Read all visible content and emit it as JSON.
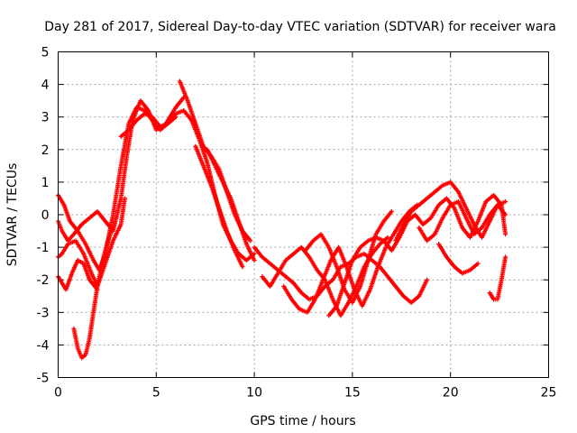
{
  "chart_data": {
    "type": "scatter",
    "title": "Day 281 of 2017, Sidereal Day-to-day VTEC variation (SDTVAR) for receiver wara",
    "xlabel": "GPS time / hours",
    "ylabel": "SDTVAR / TECUs",
    "xlim": [
      0,
      25
    ],
    "ylim": [
      -5,
      5
    ],
    "xticks": [
      "0",
      "5",
      "10",
      "15",
      "20",
      "25"
    ],
    "yticks": [
      "-5",
      "-4",
      "-3",
      "-2",
      "-1",
      "0",
      "1",
      "2",
      "3",
      "4",
      "5"
    ],
    "grid": true,
    "marker": "plus",
    "color": "#ff0000",
    "series": [
      {
        "name": "trace-1",
        "x": [
          0.0,
          0.3,
          0.6,
          1.0,
          1.4,
          1.8,
          2.1,
          2.4,
          2.8,
          3.2,
          3.6,
          4.0,
          4.4,
          4.8,
          5.2,
          5.6,
          6.0
        ],
        "y": [
          0.6,
          0.3,
          -0.2,
          -0.5,
          -0.9,
          -1.4,
          -1.7,
          -1.2,
          0.0,
          1.5,
          2.8,
          3.3,
          3.2,
          2.9,
          2.6,
          2.8,
          3.0
        ]
      },
      {
        "name": "trace-2",
        "x": [
          0.0,
          0.2,
          0.5,
          0.8,
          1.2,
          1.6,
          2.0,
          2.4,
          2.8,
          3.2,
          3.5,
          3.8,
          4.2,
          4.6,
          5.0,
          5.5,
          6.0,
          6.4
        ],
        "y": [
          -0.2,
          -0.5,
          -0.8,
          -0.6,
          -0.3,
          -0.1,
          0.1,
          -0.2,
          -0.5,
          0.5,
          1.8,
          2.9,
          3.5,
          3.2,
          2.6,
          2.8,
          3.3,
          3.6
        ]
      },
      {
        "name": "trace-3",
        "x": [
          0.0,
          0.2,
          0.5,
          0.9,
          1.3,
          1.7,
          2.0,
          2.4,
          2.8,
          3.2,
          3.4
        ],
        "y": [
          -1.3,
          -1.2,
          -0.9,
          -0.8,
          -1.2,
          -1.8,
          -2.2,
          -1.5,
          -0.8,
          -0.3,
          0.5
        ]
      },
      {
        "name": "trace-4",
        "x": [
          0.0,
          0.2,
          0.4,
          0.7,
          1.0,
          1.3,
          1.6,
          2.0
        ],
        "y": [
          -1.9,
          -2.1,
          -2.3,
          -1.8,
          -1.4,
          -1.5,
          -2.0,
          -2.3
        ]
      },
      {
        "name": "trace-5",
        "x": [
          0.8,
          1.0,
          1.2,
          1.4,
          1.6,
          1.8,
          2.0,
          2.2,
          2.4,
          2.6,
          2.8
        ],
        "y": [
          -3.5,
          -4.1,
          -4.4,
          -4.3,
          -3.8,
          -3.0,
          -2.2,
          -1.6,
          -1.1,
          -0.7,
          -0.4
        ]
      },
      {
        "name": "trace-6",
        "x": [
          3.2,
          3.6,
          4.0,
          4.4,
          4.8,
          5.2,
          5.6,
          6.0,
          6.4,
          6.8,
          7.2,
          7.6,
          8.0,
          8.4,
          8.8,
          9.2,
          9.6,
          10.0
        ],
        "y": [
          2.4,
          2.6,
          2.9,
          3.1,
          3.0,
          2.7,
          2.8,
          3.1,
          3.2,
          2.9,
          2.3,
          1.6,
          0.6,
          -0.3,
          -0.8,
          -1.2,
          -1.4,
          -1.2
        ]
      },
      {
        "name": "trace-7",
        "x": [
          6.2,
          6.6,
          7.0,
          7.4,
          7.8,
          8.2,
          8.6,
          9.0,
          9.4,
          9.8
        ],
        "y": [
          4.1,
          3.5,
          2.8,
          2.1,
          1.8,
          1.4,
          0.7,
          0.0,
          -0.5,
          -0.8
        ]
      },
      {
        "name": "trace-8",
        "x": [
          7.0,
          7.4,
          7.8,
          8.2,
          8.6,
          9.0,
          9.4
        ],
        "y": [
          2.1,
          1.5,
          0.9,
          0.2,
          -0.5,
          -1.1,
          -1.6
        ]
      },
      {
        "name": "trace-9",
        "x": [
          7.6,
          8.0,
          8.4,
          8.8,
          9.2,
          9.6,
          10.0
        ],
        "y": [
          2.0,
          1.5,
          1.0,
          0.5,
          -0.2,
          -0.9,
          -1.4
        ]
      },
      {
        "name": "trace-10",
        "x": [
          10.0,
          10.4,
          10.8,
          11.2,
          11.6,
          12.0,
          12.4,
          12.8,
          13.2,
          13.6,
          14.0,
          14.4,
          14.8,
          15.2,
          15.6,
          16.0,
          16.4,
          16.8,
          17.2,
          17.6,
          18.0,
          18.4,
          18.8
        ],
        "y": [
          -1.0,
          -1.3,
          -1.5,
          -1.7,
          -1.9,
          -2.1,
          -2.4,
          -2.6,
          -2.5,
          -2.2,
          -2.0,
          -1.6,
          -1.5,
          -1.3,
          -1.2,
          -1.4,
          -1.6,
          -1.9,
          -2.2,
          -2.5,
          -2.7,
          -2.5,
          -2.0
        ]
      },
      {
        "name": "trace-11",
        "x": [
          10.4,
          10.8,
          11.2,
          11.6,
          12.0,
          12.4,
          12.8,
          13.2,
          13.6,
          14.0,
          14.4,
          14.8,
          15.2,
          15.6,
          16.0,
          16.4,
          16.8
        ],
        "y": [
          -1.9,
          -2.2,
          -1.8,
          -1.4,
          -1.2,
          -1.0,
          -1.3,
          -1.7,
          -2.0,
          -2.6,
          -3.1,
          -2.7,
          -2.2,
          -1.6,
          -1.2,
          -0.9,
          -0.7
        ]
      },
      {
        "name": "trace-12",
        "x": [
          11.5,
          11.9,
          12.3,
          12.7,
          13.1,
          13.5,
          13.9,
          14.3,
          14.7,
          15.1,
          15.5,
          15.9,
          16.3,
          16.7,
          17.1,
          17.5,
          17.9,
          18.3
        ],
        "y": [
          -2.2,
          -2.6,
          -2.9,
          -3.0,
          -2.6,
          -2.0,
          -1.4,
          -1.0,
          -1.6,
          -2.3,
          -2.8,
          -2.3,
          -1.6,
          -1.0,
          -0.6,
          -0.2,
          0.1,
          0.3
        ]
      },
      {
        "name": "trace-13",
        "x": [
          12.6,
          13.0,
          13.4,
          13.8,
          14.2,
          14.6,
          15.0,
          15.4,
          15.8,
          16.2,
          16.6,
          17.0
        ],
        "y": [
          -1.1,
          -0.8,
          -0.6,
          -1.0,
          -1.6,
          -2.3,
          -2.7,
          -2.2,
          -1.4,
          -0.6,
          -0.2,
          0.1
        ]
      },
      {
        "name": "trace-14",
        "x": [
          13.8,
          14.2,
          14.6,
          15.0,
          15.4,
          15.8,
          16.2,
          16.6,
          17.0,
          17.4,
          17.8,
          18.2,
          18.6,
          19.0,
          19.4,
          19.8,
          20.2,
          20.6,
          21.0,
          21.4,
          21.8,
          22.2,
          22.6,
          22.8
        ],
        "y": [
          -3.1,
          -2.8,
          -2.1,
          -1.4,
          -1.0,
          -0.8,
          -0.7,
          -0.8,
          -1.1,
          -0.7,
          -0.2,
          0.0,
          -0.3,
          -0.1,
          0.3,
          0.5,
          0.2,
          -0.4,
          -0.7,
          -0.2,
          0.4,
          0.6,
          0.3,
          -0.6
        ]
      },
      {
        "name": "trace-15",
        "x": [
          17.2,
          17.6,
          18.0,
          18.4,
          18.8,
          19.2,
          19.6,
          20.0,
          20.4,
          20.8,
          21.2,
          21.6,
          22.0,
          22.4,
          22.8
        ],
        "y": [
          -0.8,
          -0.3,
          0.1,
          0.3,
          0.5,
          0.7,
          0.9,
          1.0,
          0.7,
          0.2,
          -0.3,
          -0.7,
          -0.2,
          0.3,
          0.4
        ]
      },
      {
        "name": "trace-16",
        "x": [
          18.4,
          18.8,
          19.2,
          19.6,
          20.0,
          20.4,
          20.8,
          21.2,
          21.6,
          22.0,
          22.4,
          22.8
        ],
        "y": [
          -0.4,
          -0.8,
          -0.6,
          -0.1,
          0.3,
          0.4,
          -0.1,
          -0.6,
          -0.4,
          0.0,
          0.3,
          0.0
        ]
      },
      {
        "name": "trace-17",
        "x": [
          19.4,
          19.8,
          20.2,
          20.6,
          21.0,
          21.4
        ],
        "y": [
          -0.9,
          -1.3,
          -1.6,
          -1.8,
          -1.7,
          -1.5
        ]
      },
      {
        "name": "trace-18",
        "x": [
          22.0,
          22.2,
          22.4,
          22.6,
          22.8
        ],
        "y": [
          -2.4,
          -2.6,
          -2.6,
          -2.0,
          -1.3
        ]
      }
    ]
  }
}
